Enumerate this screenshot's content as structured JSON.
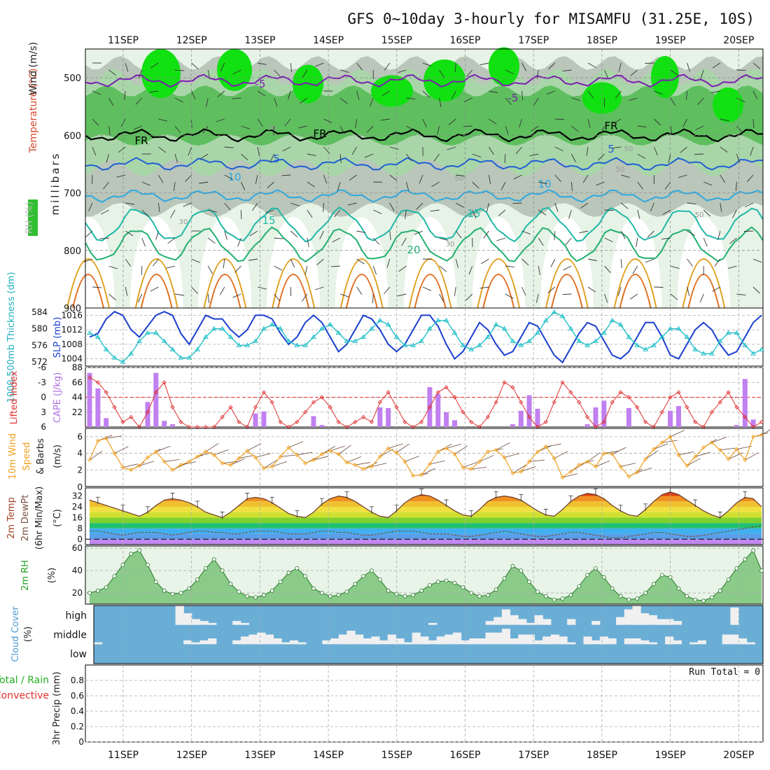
{
  "title": "GFS 0~10day 3-hourly for MISAMFU (31.25E, 10S)",
  "days": [
    "11SEP",
    "12SEP",
    "13SEP",
    "14SEP",
    "15SEP",
    "16SEP",
    "17SEP",
    "18SEP",
    "19SEP",
    "20SEP"
  ],
  "colors": {
    "rh_light": "#e6f3e6",
    "rh_mid": "#a9d6a9",
    "rh_dark": "#5fbf5f",
    "rh_bright": "#11e011",
    "rh_grey": "#b9c6b9",
    "freezing": "#000000",
    "temp_cold": "#7a1fb0",
    "temp_5": "#1f5fd6",
    "temp_10": "#2ea8e0",
    "temp_15": "#1fb8a8",
    "temp_20": "#22b070",
    "temp_25": "#e0a020",
    "temp_30": "#e07020",
    "temp_35": "#d01060",
    "slp": "#1a3fcf",
    "thickness": "#22c0c8",
    "cape": "#c080f0",
    "lifted": "#e03030",
    "wind_speed": "#f0a020",
    "barb": "#6a4a3a",
    "cloud": "#6aaed6",
    "clear": "#f0f0f0"
  },
  "upper_air": {
    "ylabel": "millibars",
    "legend_rh": "RH (%)",
    "legend_temp": "Temperature (°C)",
    "legend_wind": "Wind (m/s)",
    "pressure_ticks": [
      "500",
      "600",
      "700",
      "800",
      "900"
    ],
    "contour_labels": [
      "-5",
      "-5",
      "FR",
      "FR",
      "FR",
      "5",
      "5",
      "10",
      "10",
      "15",
      "15",
      "20",
      "30",
      "30",
      "50",
      "50",
      "50",
      "50",
      "30"
    ]
  },
  "chart_data": [
    {
      "type": "line",
      "panel": "upper-air cross-section",
      "ylabel": "millibars",
      "ylim": [
        900,
        450
      ],
      "series": [
        {
          "name": "FR",
          "label_values": [
            "FR",
            "FR",
            "FR"
          ],
          "level_mb": 600
        },
        {
          "name": "-5",
          "level_mb": 505
        },
        {
          "name": "5",
          "level_mb": 650
        },
        {
          "name": "10",
          "level_mb": 705
        },
        {
          "name": "15",
          "level_mb": 755
        },
        {
          "name": "20",
          "level_mb": 790
        }
      ]
    },
    {
      "type": "line",
      "panel": "SLP / thickness",
      "ylabel_left": "1000-500mb Thickness (dm)",
      "ylabel_right": "SLP (mb)",
      "thickness_ticks": [
        "572",
        "576",
        "580",
        "584"
      ],
      "slp_ticks": [
        "1004",
        "1008",
        "1012",
        "1016"
      ],
      "thickness_range": [
        571,
        585
      ],
      "slp_range": [
        1002,
        1018
      ],
      "series": [
        {
          "name": "SLP",
          "values": [
            1010,
            1011,
            1015,
            1017,
            1016,
            1012,
            1010,
            1013,
            1016,
            1017,
            1016,
            1011,
            1008,
            1012,
            1016,
            1015,
            1015,
            1012,
            1010,
            1012,
            1016,
            1016,
            1015,
            1011,
            1008,
            1010,
            1014,
            1016,
            1014,
            1010,
            1006,
            1008,
            1012,
            1016,
            1015,
            1012,
            1008,
            1006,
            1008,
            1012,
            1016,
            1016,
            1013,
            1008,
            1004,
            1006,
            1010,
            1014,
            1012,
            1008,
            1005,
            1006,
            1010,
            1014,
            1013,
            1009,
            1005,
            1003,
            1007,
            1011,
            1014,
            1013,
            1009,
            1005,
            1004,
            1006,
            1010,
            1014,
            1014,
            1010,
            1005,
            1004,
            1008,
            1012,
            1014,
            1012,
            1008,
            1005,
            1006,
            1010,
            1014,
            1016
          ]
        },
        {
          "name": "Thickness",
          "values": [
            579,
            578,
            575,
            573,
            572,
            574,
            577,
            579,
            579,
            577,
            575,
            573,
            573,
            575,
            578,
            580,
            580,
            578,
            576,
            576,
            577,
            580,
            581,
            580,
            577,
            576,
            576,
            578,
            580,
            581,
            579,
            577,
            577,
            578,
            580,
            582,
            581,
            578,
            576,
            576,
            577,
            580,
            582,
            582,
            579,
            576,
            575,
            576,
            578,
            581,
            580,
            577,
            576,
            577,
            579,
            582,
            584,
            583,
            580,
            577,
            576,
            577,
            579,
            582,
            581,
            578,
            576,
            575,
            576,
            578,
            580,
            580,
            578,
            575,
            574,
            574,
            577,
            579,
            579,
            576,
            574,
            575
          ]
        }
      ]
    },
    {
      "type": "bar",
      "panel": "CAPE / Lifted Index",
      "ylabel_left": "Lifted Index",
      "ylabel_right": "CAPE (J/kg)",
      "li_ticks": [
        "6",
        "3",
        "0",
        "-3",
        "-6"
      ],
      "cape_ticks": [
        "22",
        "44",
        "66",
        "88"
      ],
      "cape_range": [
        0,
        88
      ],
      "li_range": [
        6,
        -6
      ],
      "series": [
        {
          "name": "CAPE",
          "values": [
            80,
            57,
            13,
            0,
            0,
            0,
            0,
            37,
            80,
            9,
            4,
            0,
            0,
            0,
            0,
            0,
            0,
            0,
            0,
            0,
            20,
            23,
            0,
            0,
            0,
            0,
            0,
            16,
            3,
            0,
            0,
            0,
            0,
            0,
            0,
            29,
            28,
            0,
            0,
            0,
            0,
            59,
            49,
            22,
            10,
            0,
            0,
            0,
            0,
            0,
            0,
            4,
            24,
            47,
            27,
            0,
            0,
            0,
            0,
            0,
            4,
            29,
            39,
            0,
            0,
            28,
            0,
            0,
            0,
            0,
            24,
            31,
            0,
            0,
            0,
            0,
            0,
            0,
            3,
            71,
            11,
            0
          ]
        },
        {
          "name": "Lifted Index",
          "values": [
            -4,
            -3,
            -1,
            2,
            5,
            4,
            6,
            3,
            -1,
            -3,
            2,
            5,
            6,
            6,
            6,
            6,
            4,
            2,
            5,
            6,
            2,
            -1,
            1,
            5,
            6,
            5,
            3,
            1,
            0,
            2,
            5,
            6,
            5,
            4,
            5,
            1,
            -1,
            2,
            5,
            6,
            5,
            2,
            -1,
            -2,
            0,
            3,
            5,
            6,
            4,
            1,
            -3,
            -2,
            1,
            4,
            6,
            5,
            1,
            -3,
            -1,
            1,
            4,
            6,
            5,
            1,
            -1,
            0,
            2,
            5,
            6,
            3,
            0,
            -1,
            2,
            5,
            6,
            3,
            1,
            -1,
            2,
            4,
            6,
            5
          ]
        }
      ]
    },
    {
      "type": "line",
      "panel": "10m Wind Speed & Barbs",
      "ylabel": "10m Wind Speed & Barbs (m/s)",
      "yticks": [
        "2",
        "4",
        "6"
      ],
      "ylim": [
        0,
        7
      ],
      "series": [
        {
          "name": "Wind Speed",
          "values": [
            3.2,
            5.5,
            5.8,
            4.0,
            2.3,
            2.0,
            2.5,
            3.5,
            4.2,
            3.0,
            2.0,
            2.6,
            3.0,
            3.6,
            4.2,
            3.8,
            2.8,
            2.6,
            3.4,
            4.3,
            3.5,
            2.2,
            2.4,
            3.6,
            4.7,
            3.8,
            2.8,
            3.2,
            3.9,
            4.3,
            3.9,
            2.9,
            2.6,
            2.1,
            2.4,
            3.6,
            4.6,
            4.1,
            3.0,
            1.3,
            1.4,
            2.7,
            4.2,
            4.6,
            3.9,
            2.3,
            2.1,
            3.0,
            4.2,
            4.4,
            3.5,
            1.6,
            1.8,
            3.0,
            4.2,
            4.8,
            3.4,
            1.1,
            1.8,
            2.6,
            3.0,
            2.4,
            4.0,
            3.9,
            2.4,
            1.2,
            1.7,
            3.3,
            4.5,
            5.3,
            6.0,
            3.8,
            2.5,
            3.6,
            4.7,
            5.3,
            4.4,
            3.3,
            4.5,
            3.2,
            6.0,
            6.2
          ]
        }
      ]
    },
    {
      "type": "area",
      "panel": "2m Temp / DewPt",
      "ylabel": "2m Temp 2m DewPt (6hr Min/Max) (°C)",
      "yticks": [
        "0",
        "8",
        "16",
        "24",
        "32"
      ],
      "ylim": [
        -4,
        38
      ],
      "series": [
        {
          "name": "2m Temp",
          "values": [
            29,
            27,
            25,
            23,
            21,
            19,
            17,
            20,
            25,
            29,
            30,
            29,
            27,
            24,
            20,
            18,
            16,
            20,
            25,
            30,
            31,
            30,
            27,
            23,
            19,
            17,
            16,
            20,
            26,
            30,
            32,
            31,
            28,
            24,
            20,
            17,
            16,
            21,
            27,
            31,
            33,
            32,
            29,
            25,
            21,
            18,
            17,
            22,
            28,
            31,
            32,
            31,
            29,
            25,
            21,
            18,
            17,
            22,
            28,
            32,
            34,
            33,
            30,
            25,
            21,
            18,
            17,
            22,
            28,
            33,
            35,
            33,
            29,
            25,
            21,
            18,
            16,
            21,
            27,
            31,
            30,
            24
          ]
        },
        {
          "name": "2m DewPt",
          "values": [
            6,
            6,
            5,
            4,
            3,
            4,
            5,
            5,
            5,
            4,
            3,
            4,
            5,
            6,
            6,
            5,
            5,
            4,
            4,
            5,
            6,
            6,
            6,
            5,
            4,
            4,
            4,
            5,
            6,
            6,
            5,
            5,
            4,
            3,
            3,
            4,
            5,
            6,
            6,
            6,
            5,
            4,
            4,
            4,
            3,
            2,
            2,
            3,
            4,
            5,
            6,
            5,
            4,
            3,
            2,
            2,
            3,
            4,
            5,
            5,
            4,
            3,
            2,
            1,
            1,
            2,
            3,
            4,
            5,
            5,
            4,
            3,
            2,
            2,
            3,
            4,
            5,
            6,
            7,
            8,
            9,
            10
          ]
        }
      ]
    },
    {
      "type": "area",
      "panel": "2m RH",
      "ylabel": "2m RH (%)",
      "yticks": [
        "20",
        "40",
        "60"
      ],
      "ylim": [
        10,
        62
      ],
      "series": [
        {
          "name": "2m RH",
          "values": [
            20,
            22,
            25,
            35,
            45,
            55,
            58,
            45,
            30,
            22,
            19,
            20,
            24,
            32,
            42,
            50,
            40,
            28,
            21,
            17,
            16,
            18,
            22,
            30,
            38,
            42,
            35,
            24,
            20,
            17,
            18,
            21,
            28,
            35,
            40,
            32,
            22,
            19,
            17,
            18,
            22,
            27,
            30,
            31,
            29,
            25,
            20,
            17,
            18,
            23,
            33,
            44,
            40,
            30,
            21,
            17,
            14,
            15,
            18,
            26,
            36,
            42,
            34,
            24,
            17,
            14,
            15,
            20,
            28,
            36,
            34,
            24,
            17,
            14,
            13,
            16,
            22,
            32,
            42,
            50,
            58,
            40
          ]
        }
      ]
    },
    {
      "type": "heatmap",
      "panel": "Cloud Cover",
      "ylabel": "Cloud Cover (%)",
      "levels": [
        "high",
        "middle",
        "low"
      ],
      "series": [
        {
          "name": "high",
          "values": [
            0,
            0,
            0,
            0,
            0,
            0,
            0,
            0,
            0,
            0,
            1,
            0.6,
            0.3,
            0.2,
            0.1,
            0,
            0,
            0.2,
            0.1,
            0,
            0,
            0,
            0,
            0,
            0,
            0,
            0,
            0,
            0,
            0,
            0,
            0,
            0,
            0,
            0,
            0,
            0,
            0,
            0,
            0,
            0,
            0.1,
            0,
            0,
            0,
            0,
            0,
            0,
            0.2,
            0.4,
            0.8,
            0.5,
            0.3,
            0.1,
            0.5,
            0.3,
            0,
            0,
            0.3,
            0,
            0,
            0.2,
            0,
            0,
            0.4,
            0.8,
            1,
            0.6,
            0.5,
            0.3,
            0.3,
            0.2,
            0,
            0,
            0,
            0,
            0,
            0,
            0.9,
            0,
            0,
            0
          ]
        },
        {
          "name": "middle",
          "values": [
            0.1,
            0,
            0,
            0,
            0,
            0,
            0,
            0,
            0,
            0,
            0,
            0.2,
            0.1,
            0.2,
            0.3,
            0,
            0,
            0.2,
            0.4,
            0.5,
            0.6,
            0.5,
            0.3,
            0.1,
            0.2,
            0.1,
            0,
            0,
            0.2,
            0.3,
            0.5,
            0.7,
            0.5,
            0.3,
            0.4,
            0.2,
            0.5,
            0.3,
            0.1,
            0.6,
            0.4,
            0.2,
            0.4,
            0.5,
            0.6,
            0.2,
            0.3,
            0.3,
            0.6,
            0.6,
            0.8,
            0.3,
            0.5,
            0.5,
            0.2,
            0.4,
            0.5,
            0.4,
            0.1,
            0,
            0.4,
            0.2,
            0.4,
            0.3,
            0,
            0.3,
            0.3,
            0.2,
            0.1,
            0,
            0.4,
            0.2,
            0,
            0.1,
            0.2,
            0,
            0,
            0.5,
            0.5,
            0.3,
            0.1,
            0
          ]
        },
        {
          "name": "low",
          "values": []
        }
      ]
    },
    {
      "type": "bar",
      "panel": "3hr Precip",
      "ylabel": "3hr Precip (mm)",
      "legend_total": "Total / Rain",
      "legend_convective": "Convective",
      "yticks": [
        "0",
        "0.2",
        "0.4",
        "0.6",
        "0.8"
      ],
      "ylim": [
        0,
        1.0
      ],
      "run_total": "Run Total = 0",
      "series": [
        {
          "name": "Total / Rain",
          "values": []
        },
        {
          "name": "Convective",
          "values": []
        }
      ]
    }
  ]
}
